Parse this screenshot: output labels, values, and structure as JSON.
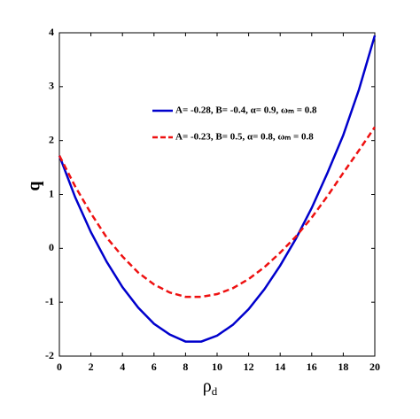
{
  "chart_data": {
    "type": "line",
    "x_label": "ρ",
    "x_label_sub": "d",
    "y_label": "q",
    "x": [
      0,
      1,
      2,
      3,
      4,
      5,
      6,
      7,
      8,
      9,
      10,
      11,
      12,
      13,
      14,
      15,
      16,
      17,
      18,
      19,
      20
    ],
    "series": [
      {
        "name": "A= -0.28, B= -0.4, α= 0.9, ωₘ = 0.8",
        "color": "#0000cc",
        "dash": "solid",
        "values": [
          1.72,
          0.95,
          0.3,
          -0.25,
          -0.72,
          -1.1,
          -1.4,
          -1.6,
          -1.73,
          -1.73,
          -1.62,
          -1.42,
          -1.13,
          -0.76,
          -0.32,
          0.18,
          0.75,
          1.4,
          2.1,
          2.95,
          3.95
        ]
      },
      {
        "name": "A= -0.23, B= 0.5, α= 0.8, ωₘ = 0.8",
        "color": "#ee1111",
        "dash": "dashed",
        "values": [
          1.72,
          1.15,
          0.65,
          0.2,
          -0.15,
          -0.45,
          -0.67,
          -0.82,
          -0.9,
          -0.9,
          -0.85,
          -0.74,
          -0.57,
          -0.35,
          -0.08,
          0.22,
          0.57,
          0.97,
          1.4,
          1.82,
          2.25
        ]
      }
    ],
    "xlim": [
      0,
      20
    ],
    "xticks": [
      0,
      2,
      4,
      6,
      8,
      10,
      12,
      14,
      16,
      18,
      20
    ],
    "ylim": [
      -2,
      4
    ],
    "yticks": [
      -2,
      -1,
      0,
      1,
      2,
      3,
      4
    ],
    "grid": false
  }
}
